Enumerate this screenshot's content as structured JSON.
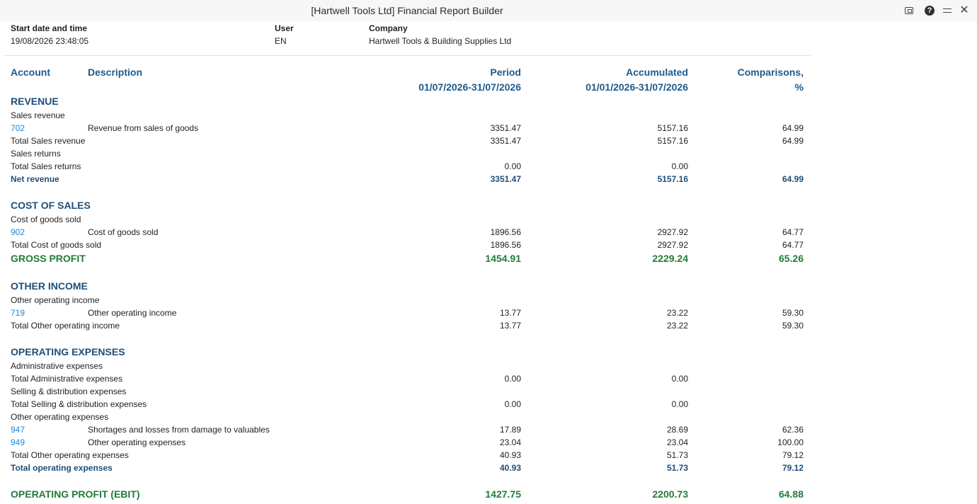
{
  "window": {
    "title": "[Hartwell Tools Ltd] Financial Report Builder"
  },
  "meta": {
    "start_label": "Start date and time",
    "start_value": "19/08/2026 23:48:05",
    "user_label": "User",
    "user_value": "EN",
    "company_label": "Company",
    "company_value": "Hartwell Tools & Building Supplies Ltd"
  },
  "columns": {
    "account": "Account",
    "description": "Description",
    "period": "Period",
    "period_range": "01/07/2026-31/07/2026",
    "accumulated": "Accumulated",
    "accumulated_range": "01/01/2026-31/07/2026",
    "comparisons": "Comparisons,",
    "comparisons_unit": "%"
  },
  "rows": [
    {
      "type": "section",
      "account": "REVENUE"
    },
    {
      "type": "label",
      "account": "Sales revenue"
    },
    {
      "type": "account",
      "account": "702",
      "desc": "Revenue from sales of goods",
      "period": "3351.47",
      "acc": "5157.16",
      "cmp": "64.99"
    },
    {
      "type": "total",
      "account": "Total Sales revenue",
      "period": "3351.47",
      "acc": "5157.16",
      "cmp": "64.99"
    },
    {
      "type": "label",
      "account": "Sales returns"
    },
    {
      "type": "total",
      "account": "Total Sales returns",
      "period": "0.00",
      "acc": "0.00",
      "cmp": ""
    },
    {
      "type": "bold",
      "account": "Net revenue",
      "period": "3351.47",
      "acc": "5157.16",
      "cmp": "64.99"
    },
    {
      "type": "section",
      "account": "COST OF SALES"
    },
    {
      "type": "label",
      "account": "Cost of goods sold"
    },
    {
      "type": "account",
      "account": "902",
      "desc": "Cost of goods sold",
      "period": "1896.56",
      "acc": "2927.92",
      "cmp": "64.77"
    },
    {
      "type": "total",
      "account": "Total Cost of goods sold",
      "period": "1896.56",
      "acc": "2927.92",
      "cmp": "64.77"
    },
    {
      "type": "green",
      "account": "GROSS PROFIT",
      "period": "1454.91",
      "acc": "2229.24",
      "cmp": "65.26"
    },
    {
      "type": "section",
      "account": "OTHER INCOME"
    },
    {
      "type": "label",
      "account": "Other operating income"
    },
    {
      "type": "account",
      "account": "719",
      "desc": "Other operating income",
      "period": "13.77",
      "acc": "23.22",
      "cmp": "59.30"
    },
    {
      "type": "total",
      "account": "Total Other operating income",
      "period": "13.77",
      "acc": "23.22",
      "cmp": "59.30"
    },
    {
      "type": "section",
      "account": "OPERATING EXPENSES"
    },
    {
      "type": "label",
      "account": "Administrative expenses"
    },
    {
      "type": "total",
      "account": "Total Administrative expenses",
      "period": "0.00",
      "acc": "0.00",
      "cmp": ""
    },
    {
      "type": "label",
      "account": "Selling & distribution expenses"
    },
    {
      "type": "total",
      "account": "Total Selling & distribution expenses",
      "period": "0.00",
      "acc": "0.00",
      "cmp": ""
    },
    {
      "type": "label",
      "account": "Other operating expenses"
    },
    {
      "type": "account",
      "account": "947",
      "desc": "Shortages and losses from damage to valuables",
      "period": "17.89",
      "acc": "28.69",
      "cmp": "62.36"
    },
    {
      "type": "account",
      "account": "949",
      "desc": "Other operating expenses",
      "period": "23.04",
      "acc": "23.04",
      "cmp": "100.00"
    },
    {
      "type": "total",
      "account": "Total Other operating expenses",
      "period": "40.93",
      "acc": "51.73",
      "cmp": "79.12"
    },
    {
      "type": "bold",
      "account": "Total operating expenses",
      "period": "40.93",
      "acc": "51.73",
      "cmp": "79.12"
    },
    {
      "type": "green",
      "account": "OPERATING PROFIT (EBIT)",
      "period": "1427.75",
      "acc": "2200.73",
      "cmp": "64.88"
    }
  ]
}
